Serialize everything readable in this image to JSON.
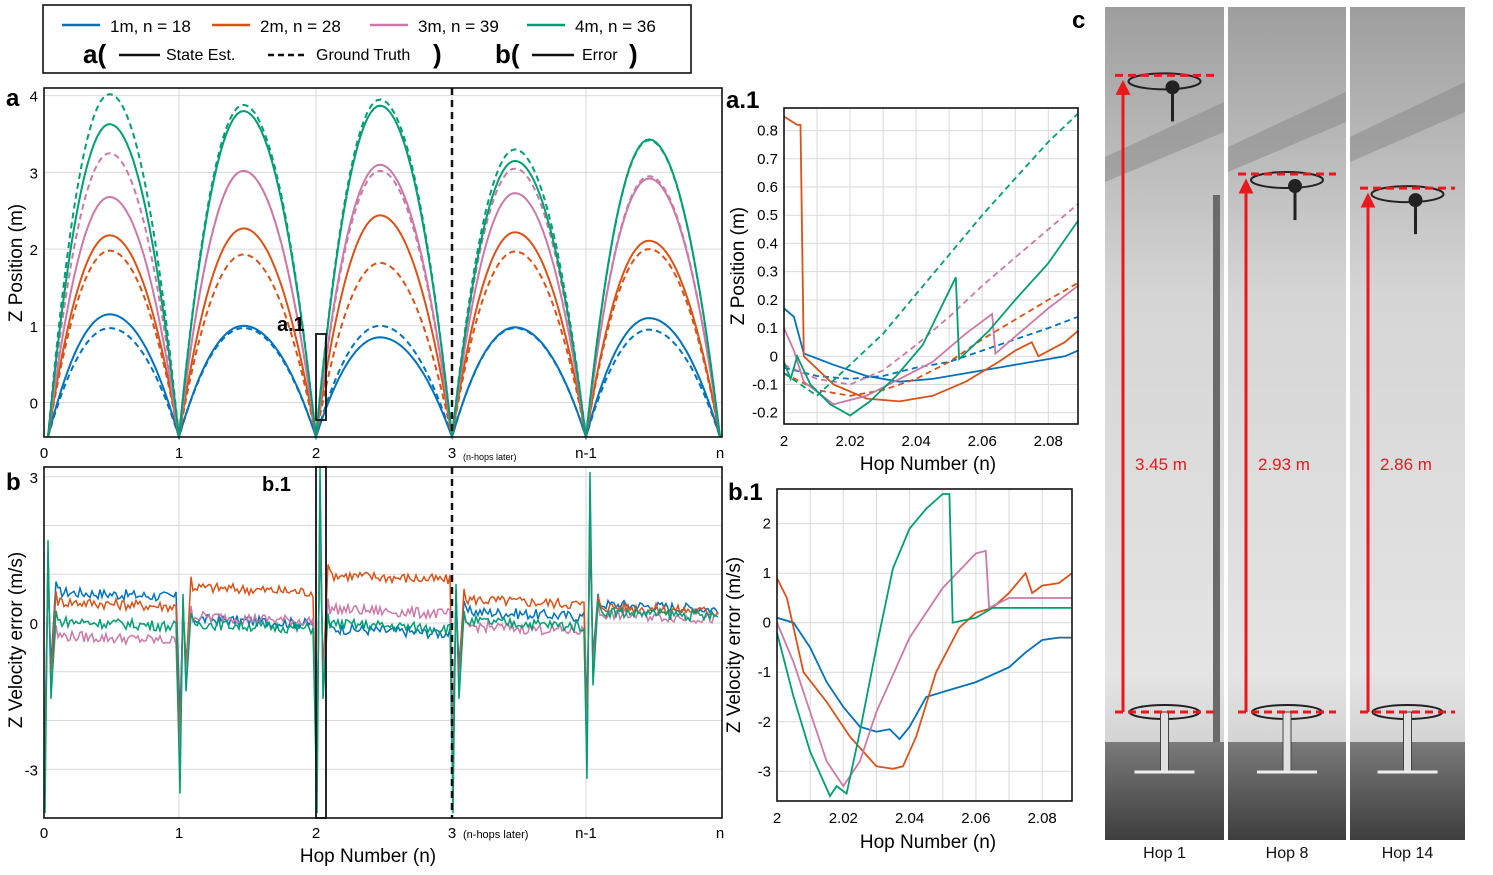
{
  "legend": {
    "series": [
      {
        "label": "1m, n = 18",
        "color": "#0072BD"
      },
      {
        "label": "2m, n = 28",
        "color": "#D95319"
      },
      {
        "label": "3m, n = 39",
        "color": "#CC79A7"
      },
      {
        "label": "4m, n = 36",
        "color": "#009E73"
      }
    ],
    "a_prefix": "a(",
    "a_suffix": ")",
    "b_prefix": "b(",
    "b_suffix": ")",
    "state_est": "State Est.",
    "ground_truth": "Ground Truth",
    "error": "Error"
  },
  "chart_data": [
    {
      "id": "a",
      "type": "line",
      "panel_label": "a",
      "ylabel": "Z Position (m)",
      "xlabel": "",
      "xticks": [
        "0",
        "1",
        "2",
        "3",
        "n-1",
        "n"
      ],
      "x_note": "(n-hops later)",
      "yticks": [
        "0",
        "1",
        "2",
        "3",
        "4"
      ],
      "ylim": [
        -0.45,
        4.1
      ],
      "xlim": [
        0,
        5
      ],
      "grid": true,
      "break_at": 3,
      "inset_marker": "a.1",
      "inset_range": [
        2.0,
        2.09
      ],
      "series": [
        {
          "name": "1m, n = 18",
          "color": "#0072BD",
          "style": "solid",
          "peaks": [
            1.15,
            1.0,
            0.85,
            0.98,
            1.1
          ],
          "start": -0.05,
          "end": 0.45
        },
        {
          "name": "1m, n = 18",
          "color": "#0072BD",
          "style": "dashed",
          "peaks": [
            0.97,
            0.97,
            1.0,
            0.97,
            0.95
          ],
          "start": -0.1,
          "end": 0.3
        },
        {
          "name": "2m, n = 28",
          "color": "#D95319",
          "style": "solid",
          "peaks": [
            2.18,
            2.27,
            2.44,
            2.22,
            2.11
          ],
          "start": -0.15,
          "end": 0.55
        },
        {
          "name": "2m, n = 28",
          "color": "#D95319",
          "style": "dashed",
          "peaks": [
            1.98,
            1.93,
            1.82,
            1.97,
            2.0
          ],
          "start": -0.15,
          "end": 0.5
        },
        {
          "name": "3m, n = 39",
          "color": "#CC79A7",
          "style": "solid",
          "peaks": [
            2.68,
            3.02,
            3.1,
            2.73,
            2.92
          ],
          "start": -0.18,
          "end": 0.6
        },
        {
          "name": "3m, n = 39",
          "color": "#CC79A7",
          "style": "dashed",
          "peaks": [
            3.25,
            3.02,
            3.02,
            3.05,
            2.95
          ],
          "start": -0.18,
          "end": 0.6
        },
        {
          "name": "4m, n = 36",
          "color": "#009E73",
          "style": "solid",
          "peaks": [
            3.63,
            3.8,
            3.87,
            3.15,
            3.43
          ],
          "start": -0.22,
          "end": 0.7
        },
        {
          "name": "4m, n = 36",
          "color": "#009E73",
          "style": "dashed",
          "peaks": [
            4.02,
            3.88,
            3.95,
            3.3,
            3.42
          ],
          "start": -0.22,
          "end": 0.7
        }
      ]
    },
    {
      "id": "a1",
      "type": "line",
      "panel_label": "a.1",
      "xlabel": "Hop Number (n)",
      "ylabel": "Z Position (m)",
      "xticks": [
        "2",
        "2.02",
        "2.04",
        "2.06",
        "2.08"
      ],
      "xtick_values": [
        2.0,
        2.02,
        2.04,
        2.06,
        2.08
      ],
      "yticks": [
        "-0.2",
        "-0.1",
        "0",
        "0.1",
        "0.2",
        "0.3",
        "0.4",
        "0.5",
        "0.6",
        "0.7",
        "0.8"
      ],
      "ytick_values": [
        -0.2,
        -0.1,
        0,
        0.1,
        0.2,
        0.3,
        0.4,
        0.5,
        0.6,
        0.7,
        0.8
      ],
      "xlim": [
        2.0,
        2.089
      ],
      "ylim": [
        -0.24,
        0.88
      ],
      "grid": true,
      "series": [
        {
          "name": "1m, n = 18",
          "color": "#0072BD",
          "style": "solid",
          "x": [
            2.0,
            2.003,
            2.006,
            2.015,
            2.025,
            2.035,
            2.045,
            2.055,
            2.065,
            2.075,
            2.085,
            2.089
          ],
          "y": [
            0.17,
            0.14,
            0.01,
            -0.03,
            -0.07,
            -0.09,
            -0.08,
            -0.06,
            -0.04,
            -0.02,
            0.0,
            0.02
          ]
        },
        {
          "name": "1m, n = 18",
          "color": "#0072BD",
          "style": "dashed",
          "x": [
            2.0,
            2.01,
            2.02,
            2.03,
            2.04,
            2.05,
            2.06,
            2.07,
            2.08,
            2.089
          ],
          "y": [
            -0.04,
            -0.07,
            -0.08,
            -0.07,
            -0.04,
            -0.02,
            0.02,
            0.06,
            0.1,
            0.14
          ]
        },
        {
          "name": "2m, n = 28",
          "color": "#D95319",
          "style": "solid",
          "x": [
            2.0,
            2.004,
            2.005,
            2.006,
            2.015,
            2.025,
            2.035,
            2.045,
            2.055,
            2.065,
            2.07,
            2.075,
            2.077,
            2.085,
            2.089
          ],
          "y": [
            0.85,
            0.82,
            0.82,
            0.0,
            -0.1,
            -0.15,
            -0.16,
            -0.14,
            -0.09,
            -0.02,
            0.02,
            0.05,
            0.0,
            0.05,
            0.09
          ]
        },
        {
          "name": "2m, n = 28",
          "color": "#D95319",
          "style": "dashed",
          "x": [
            2.0,
            2.01,
            2.02,
            2.03,
            2.04,
            2.05,
            2.06,
            2.07,
            2.08,
            2.089
          ],
          "y": [
            -0.06,
            -0.12,
            -0.14,
            -0.12,
            -0.08,
            -0.02,
            0.06,
            0.13,
            0.2,
            0.26
          ]
        },
        {
          "name": "3m, n = 39",
          "color": "#CC79A7",
          "style": "solid",
          "x": [
            2.0,
            2.003,
            2.006,
            2.015,
            2.025,
            2.035,
            2.045,
            2.055,
            2.063,
            2.064,
            2.072,
            2.08,
            2.089
          ],
          "y": [
            0.1,
            0.02,
            -0.09,
            -0.17,
            -0.14,
            -0.08,
            -0.02,
            0.08,
            0.15,
            0.01,
            0.09,
            0.17,
            0.25
          ]
        },
        {
          "name": "3m, n = 39",
          "color": "#CC79A7",
          "style": "dashed",
          "x": [
            2.0,
            2.01,
            2.02,
            2.03,
            2.04,
            2.05,
            2.06,
            2.07,
            2.08,
            2.089
          ],
          "y": [
            -0.03,
            -0.08,
            -0.1,
            -0.05,
            0.04,
            0.14,
            0.25,
            0.35,
            0.45,
            0.54
          ]
        },
        {
          "name": "4m, n = 36",
          "color": "#009E73",
          "style": "solid",
          "x": [
            2.0,
            2.002,
            2.004,
            2.008,
            2.014,
            2.02,
            2.026,
            2.034,
            2.042,
            2.052,
            2.053,
            2.062,
            2.07,
            2.08,
            2.089
          ],
          "y": [
            -0.02,
            -0.08,
            0.0,
            -0.1,
            -0.17,
            -0.21,
            -0.16,
            -0.07,
            0.04,
            0.28,
            -0.01,
            0.09,
            0.2,
            0.33,
            0.48
          ]
        },
        {
          "name": "4m, n = 36",
          "color": "#009E73",
          "style": "dashed",
          "x": [
            2.0,
            2.01,
            2.02,
            2.03,
            2.04,
            2.05,
            2.06,
            2.07,
            2.08,
            2.089
          ],
          "y": [
            -0.06,
            -0.14,
            -0.03,
            0.08,
            0.22,
            0.36,
            0.5,
            0.63,
            0.76,
            0.86
          ]
        }
      ]
    },
    {
      "id": "b",
      "type": "line",
      "panel_label": "b",
      "ylabel": "Z Velocity error (m/s)",
      "xlabel": "Hop Number (n)",
      "xticks": [
        "0",
        "1",
        "2",
        "3",
        "n-1",
        "n"
      ],
      "x_note": "(n-hops later)",
      "yticks": [
        "-3",
        "0",
        "3"
      ],
      "ylim": [
        -4.0,
        3.2
      ],
      "xlim": [
        0,
        5
      ],
      "grid": true,
      "break_at": 3,
      "inset_marker": "b.1",
      "inset_range": [
        2.0,
        2.09
      ],
      "series": [
        {
          "name": "1m, n = 18",
          "color": "#0072BD",
          "style": "solid",
          "levels": [
            0.65,
            0.1,
            -0.1,
            0.25,
            0.4
          ]
        },
        {
          "name": "2m, n = 28",
          "color": "#D95319",
          "style": "solid",
          "levels": [
            0.45,
            0.75,
            1.0,
            0.5,
            0.35
          ]
        },
        {
          "name": "3m, n = 39",
          "color": "#CC79A7",
          "style": "solid",
          "levels": [
            -0.25,
            0.15,
            0.3,
            -0.05,
            0.2
          ]
        },
        {
          "name": "4m, n = 36",
          "color": "#009E73",
          "style": "solid",
          "levels": [
            0.05,
            0.0,
            0.0,
            0.05,
            0.25
          ]
        }
      ]
    },
    {
      "id": "b1",
      "type": "line",
      "panel_label": "b.1",
      "xlabel": "Hop Number (n)",
      "ylabel": "Z Velocity error (m/s)",
      "xticks": [
        "2",
        "2.02",
        "2.04",
        "2.06",
        "2.08"
      ],
      "xtick_values": [
        2.0,
        2.02,
        2.04,
        2.06,
        2.08
      ],
      "yticks": [
        "-3",
        "-2",
        "-1",
        "0",
        "1",
        "2"
      ],
      "ytick_values": [
        -3,
        -2,
        -1,
        0,
        1,
        2
      ],
      "xlim": [
        2.0,
        2.089
      ],
      "ylim": [
        -3.6,
        2.7
      ],
      "grid": true,
      "series": [
        {
          "name": "1m, n = 18",
          "color": "#0072BD",
          "style": "solid",
          "x": [
            2.0,
            2.005,
            2.01,
            2.015,
            2.02,
            2.025,
            2.03,
            2.034,
            2.037,
            2.04,
            2.045,
            2.05,
            2.06,
            2.07,
            2.075,
            2.08,
            2.085,
            2.089
          ],
          "y": [
            0.1,
            0.0,
            -0.5,
            -1.2,
            -1.7,
            -2.1,
            -2.2,
            -2.15,
            -2.35,
            -2.1,
            -1.5,
            -1.4,
            -1.2,
            -0.9,
            -0.6,
            -0.35,
            -0.3,
            -0.3
          ]
        },
        {
          "name": "2m, n = 28",
          "color": "#D95319",
          "style": "solid",
          "x": [
            2.0,
            2.003,
            2.008,
            2.015,
            2.022,
            2.03,
            2.035,
            2.038,
            2.042,
            2.048,
            2.055,
            2.06,
            2.065,
            2.07,
            2.075,
            2.077,
            2.08,
            2.085,
            2.089
          ],
          "y": [
            0.9,
            0.5,
            -1.0,
            -1.6,
            -2.3,
            -2.9,
            -2.95,
            -2.9,
            -2.3,
            -1.0,
            -0.1,
            0.2,
            0.3,
            0.6,
            1.0,
            0.6,
            0.75,
            0.8,
            1.0
          ]
        },
        {
          "name": "3m, n = 39",
          "color": "#CC79A7",
          "style": "solid",
          "x": [
            2.0,
            2.005,
            2.01,
            2.015,
            2.02,
            2.025,
            2.03,
            2.04,
            2.05,
            2.06,
            2.063,
            2.064,
            2.07,
            2.08,
            2.089
          ],
          "y": [
            0.0,
            -0.8,
            -1.8,
            -2.8,
            -3.3,
            -2.8,
            -1.8,
            -0.3,
            0.7,
            1.4,
            1.45,
            0.3,
            0.5,
            0.5,
            0.5
          ]
        },
        {
          "name": "4m, n = 36",
          "color": "#009E73",
          "style": "solid",
          "x": [
            2.0,
            2.005,
            2.01,
            2.016,
            2.018,
            2.021,
            2.025,
            2.03,
            2.035,
            2.04,
            2.045,
            2.05,
            2.052,
            2.053,
            2.06,
            2.065,
            2.07,
            2.08,
            2.089
          ],
          "y": [
            -0.2,
            -1.5,
            -2.6,
            -3.5,
            -3.3,
            -3.45,
            -2.2,
            -0.5,
            1.1,
            1.9,
            2.3,
            2.6,
            2.6,
            0.0,
            0.1,
            0.3,
            0.3,
            0.3,
            0.3
          ]
        }
      ]
    }
  ],
  "photo_panel": {
    "label": "c",
    "frames": [
      {
        "caption": "Hop 1",
        "height_label": "3.45 m",
        "height_frac": 0.93
      },
      {
        "caption": "Hop 8",
        "height_label": "2.93 m",
        "height_frac": 0.79
      },
      {
        "caption": "Hop 14",
        "height_label": "2.86 m",
        "height_frac": 0.77
      }
    ],
    "arrow_color": "#E8181C"
  }
}
